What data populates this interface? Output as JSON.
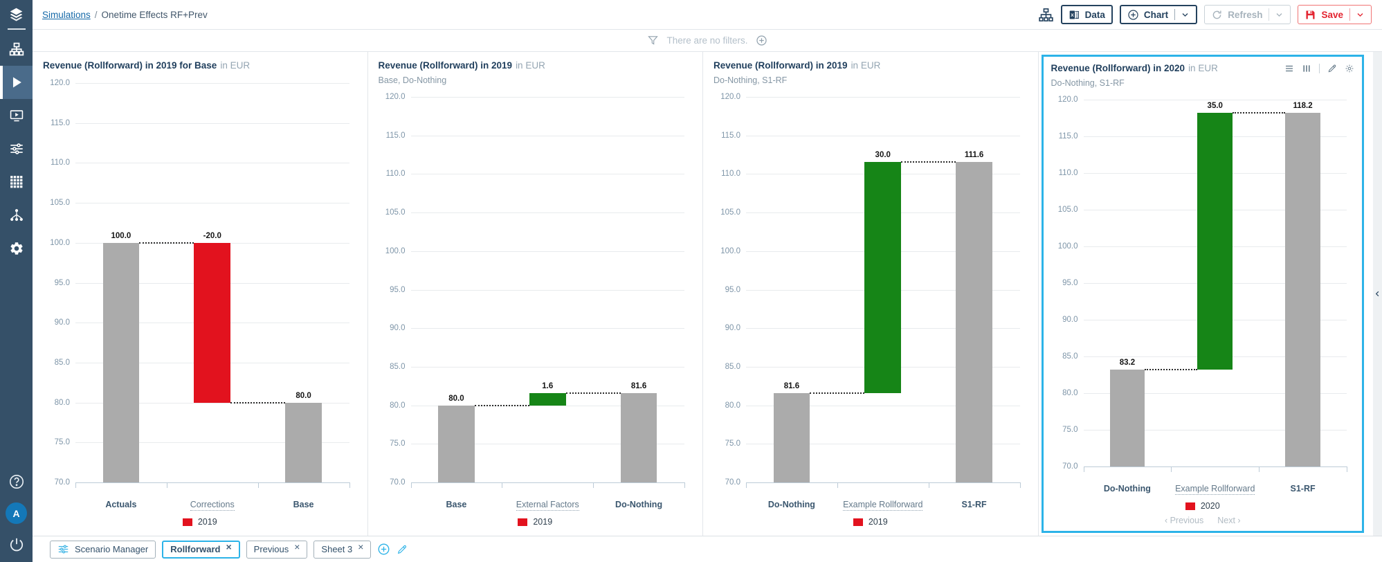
{
  "colors": {
    "accent": "#2cb3e8",
    "navy": "#24425e",
    "red": "#e2121e",
    "green": "#168517",
    "gray": "#ababab",
    "sidebar_bg": "#355068",
    "sidebar_active_bg": "#4a6b8a",
    "avatar_bg": "#1478b8"
  },
  "sidebar": {
    "logo_icon": "layers-logo-icon",
    "items": [
      {
        "name": "models",
        "icon": "org-chart-icon",
        "active": false
      },
      {
        "name": "simulations",
        "icon": "play-icon",
        "active": true
      },
      {
        "name": "presentations",
        "icon": "presentation-play-icon",
        "active": false
      },
      {
        "name": "assumptions",
        "icon": "sliders-icon",
        "active": false
      },
      {
        "name": "data-grid",
        "icon": "grid-icon",
        "active": false
      },
      {
        "name": "model-tree",
        "icon": "tree-icon",
        "active": false
      },
      {
        "name": "settings",
        "icon": "gear-icon",
        "active": false
      }
    ],
    "footer": {
      "help_icon": "help-icon",
      "avatar_letter": "A",
      "logout_icon": "power-icon"
    }
  },
  "topbar": {
    "breadcrumb": {
      "link": "Simulations",
      "separator": "/",
      "current": "Onetime Effects RF+Prev"
    },
    "hierarchy_icon": "hierarchy-icon",
    "buttons": {
      "data_label": "Data",
      "chart_label": "Chart",
      "refresh_label": "Refresh",
      "save_label": "Save"
    }
  },
  "filterbar": {
    "message": "There are no filters.",
    "icons": [
      "funnel-icon",
      "plus-circle-icon"
    ]
  },
  "chart_data": [
    {
      "type": "bar",
      "subtype": "waterfall",
      "title": "Revenue (Rollforward) in 2019 for Base",
      "unit": "in EUR",
      "subtitle": null,
      "ylim": [
        70,
        120
      ],
      "y_ticks": [
        120,
        115,
        110,
        105,
        100,
        95,
        90,
        85,
        80,
        75,
        70
      ],
      "categories": [
        {
          "label": "Actuals",
          "style": "scenario"
        },
        {
          "label": "Corrections",
          "style": "delta-link"
        },
        {
          "label": "Base",
          "style": "scenario"
        }
      ],
      "bars": [
        {
          "from": 70,
          "to": 100,
          "color": "gray",
          "value_label": "100.0"
        },
        {
          "from": 80,
          "to": 100,
          "color": "red",
          "value_label": "-20.0"
        },
        {
          "from": 70,
          "to": 80,
          "color": "gray",
          "value_label": "80.0"
        }
      ],
      "connectors": [
        {
          "level": 100,
          "between": [
            0,
            1
          ]
        },
        {
          "level": 80,
          "between": [
            1,
            2
          ]
        }
      ],
      "legend": {
        "label": "2019",
        "color": "red"
      },
      "selected": false,
      "pagination": false
    },
    {
      "type": "bar",
      "subtype": "waterfall",
      "title": "Revenue (Rollforward) in 2019",
      "unit": "in EUR",
      "subtitle": "Base, Do-Nothing",
      "ylim": [
        70,
        120
      ],
      "y_ticks": [
        120,
        115,
        110,
        105,
        100,
        95,
        90,
        85,
        80,
        75,
        70
      ],
      "categories": [
        {
          "label": "Base",
          "style": "scenario"
        },
        {
          "label": "External Factors",
          "style": "delta-link"
        },
        {
          "label": "Do-Nothing",
          "style": "scenario"
        }
      ],
      "bars": [
        {
          "from": 70,
          "to": 80,
          "color": "gray",
          "value_label": "80.0"
        },
        {
          "from": 80,
          "to": 81.6,
          "color": "green",
          "value_label": "1.6"
        },
        {
          "from": 70,
          "to": 81.6,
          "color": "gray",
          "value_label": "81.6"
        }
      ],
      "connectors": [
        {
          "level": 80,
          "between": [
            0,
            1
          ]
        },
        {
          "level": 81.6,
          "between": [
            1,
            2
          ]
        }
      ],
      "legend": {
        "label": "2019",
        "color": "red"
      },
      "selected": false,
      "pagination": false
    },
    {
      "type": "bar",
      "subtype": "waterfall",
      "title": "Revenue (Rollforward) in 2019",
      "unit": "in EUR",
      "subtitle": "Do-Nothing, S1-RF",
      "ylim": [
        70,
        120
      ],
      "y_ticks": [
        120,
        115,
        110,
        105,
        100,
        95,
        90,
        85,
        80,
        75,
        70
      ],
      "categories": [
        {
          "label": "Do-Nothing",
          "style": "scenario"
        },
        {
          "label": "Example Rollforward",
          "style": "delta-link"
        },
        {
          "label": "S1-RF",
          "style": "scenario"
        }
      ],
      "bars": [
        {
          "from": 70,
          "to": 81.6,
          "color": "gray",
          "value_label": "81.6"
        },
        {
          "from": 81.6,
          "to": 111.6,
          "color": "green",
          "value_label": "30.0"
        },
        {
          "from": 70,
          "to": 111.6,
          "color": "gray",
          "value_label": "111.6"
        }
      ],
      "connectors": [
        {
          "level": 81.6,
          "between": [
            0,
            1
          ]
        },
        {
          "level": 111.6,
          "between": [
            1,
            2
          ]
        }
      ],
      "legend": {
        "label": "2019",
        "color": "red"
      },
      "selected": false,
      "pagination": false
    },
    {
      "type": "bar",
      "subtype": "waterfall",
      "title": "Revenue (Rollforward) in 2020",
      "unit": "in EUR",
      "subtitle": "Do-Nothing, S1-RF",
      "ylim": [
        70,
        120
      ],
      "y_ticks": [
        120,
        115,
        110,
        105,
        100,
        95,
        90,
        85,
        80,
        75,
        70
      ],
      "categories": [
        {
          "label": "Do-Nothing",
          "style": "scenario"
        },
        {
          "label": "Example Rollforward",
          "style": "delta-link"
        },
        {
          "label": "S1-RF",
          "style": "scenario"
        }
      ],
      "bars": [
        {
          "from": 70,
          "to": 83.2,
          "color": "gray",
          "value_label": "83.2"
        },
        {
          "from": 83.2,
          "to": 118.2,
          "color": "green",
          "value_label": "35.0"
        },
        {
          "from": 70,
          "to": 118.2,
          "color": "gray",
          "value_label": "118.2"
        }
      ],
      "connectors": [
        {
          "level": 83.2,
          "between": [
            0,
            1
          ]
        },
        {
          "level": 118.2,
          "between": [
            1,
            2
          ]
        }
      ],
      "legend": {
        "label": "2020",
        "color": "red"
      },
      "selected": true,
      "pagination": true,
      "tools": [
        "list-icon",
        "columns-icon",
        "|",
        "pencil-icon",
        "gear-small-icon"
      ]
    }
  ],
  "pagination": {
    "previous": "Previous",
    "next": "Next"
  },
  "right_strip": {
    "icon": "chevron-left-icon"
  },
  "tabbar": {
    "scenario_manager_label": "Scenario Manager",
    "scenario_manager_icon": "sliders-icon",
    "tabs": [
      {
        "label": "Rollforward",
        "active": true,
        "closable": true
      },
      {
        "label": "Previous",
        "active": false,
        "closable": true
      },
      {
        "label": "Sheet 3",
        "active": false,
        "closable": true
      }
    ],
    "actions": [
      "plus-circle-icon",
      "pencil-icon"
    ]
  }
}
